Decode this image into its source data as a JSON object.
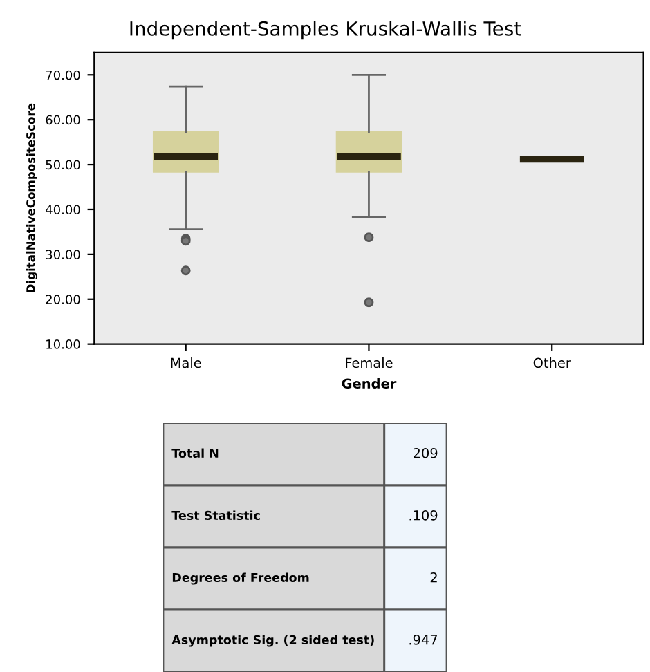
{
  "chart_data": {
    "type": "box",
    "title": "Independent-Samples Kruskal-Wallis Test",
    "xlabel": "Gender",
    "ylabel": "DigitalNativeCompositeScore",
    "categories": [
      "Male",
      "Female",
      "Other"
    ],
    "boxes": [
      {
        "low": 35.6,
        "q1": 48.4,
        "median": 51.8,
        "q3": 57.3,
        "high": 67.4,
        "outliers": [
          33.5,
          33.0,
          26.4
        ]
      },
      {
        "low": 38.3,
        "q1": 48.4,
        "median": 51.8,
        "q3": 57.3,
        "high": 70.0,
        "outliers": [
          33.8,
          19.3
        ]
      },
      {
        "low": 51.2,
        "q1": 51.2,
        "median": 51.2,
        "q3": 51.2,
        "high": 51.2
      }
    ],
    "color": "#d6d29c",
    "ylim": [
      10,
      75
    ],
    "yticks": [
      {
        "value": 10,
        "label": "10.00"
      },
      {
        "value": 20,
        "label": "20.00"
      },
      {
        "value": 30,
        "label": "30.00"
      },
      {
        "value": 40,
        "label": "40.00"
      },
      {
        "value": 50,
        "label": "50.00"
      },
      {
        "value": 60,
        "label": "60.00"
      },
      {
        "value": 70,
        "label": "70.00"
      }
    ],
    "grid": false,
    "legend": false,
    "annotations": [
      "Total N",
      "209",
      "Test Statistic",
      ".109",
      "Degrees of Freedom",
      "2",
      "Asymptotic Sig. (2 sided test)",
      ".947"
    ]
  }
}
